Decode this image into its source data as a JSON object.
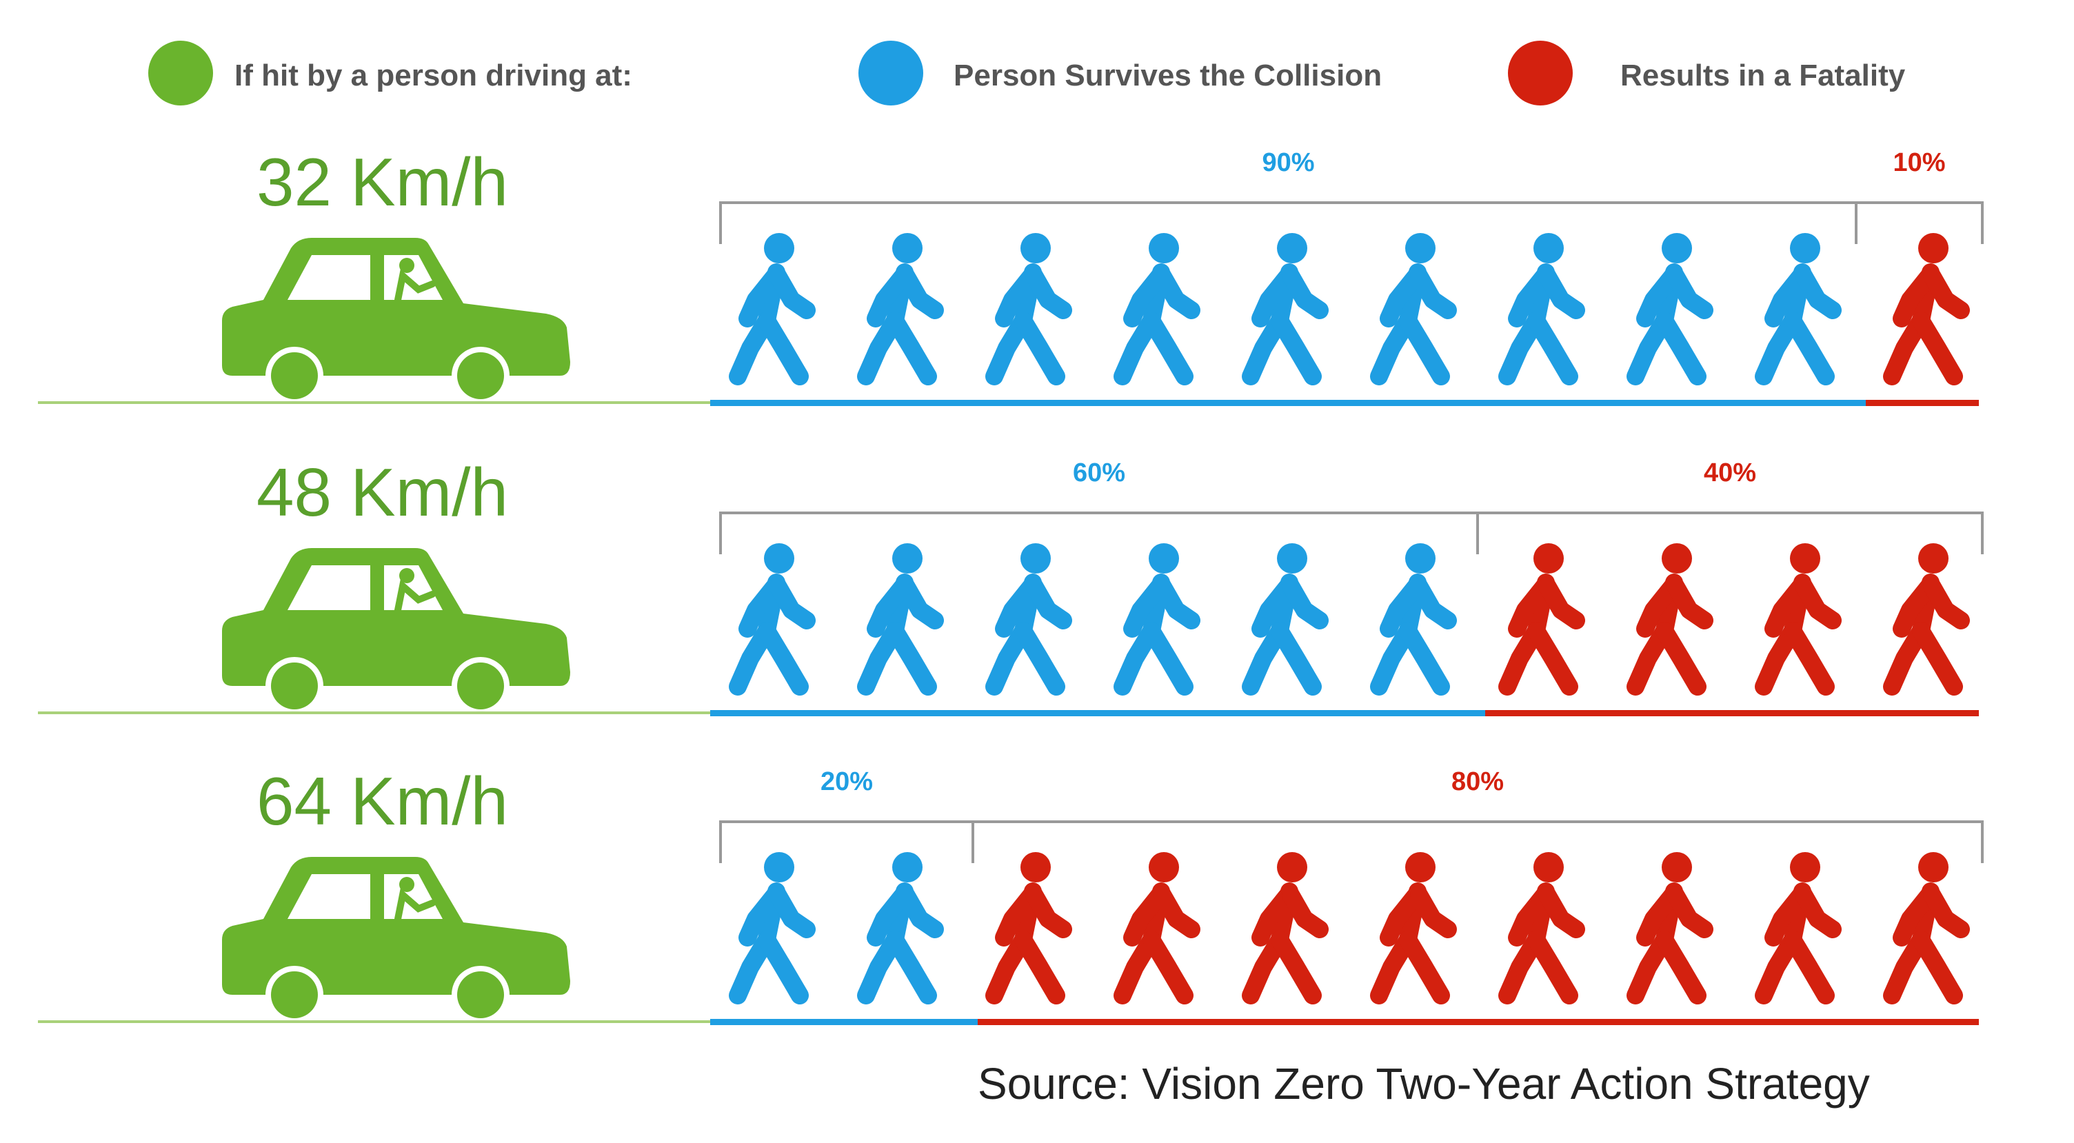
{
  "legend": {
    "speed_label": "If hit by a person driving at:",
    "survive_label": "Person Survives the Collision",
    "fatal_label": "Results in a Fatality"
  },
  "colors": {
    "green": "#6ab42d",
    "blue": "#1f9ee2",
    "red": "#d3210f",
    "bracket": "#999999"
  },
  "chart_data": {
    "type": "bar",
    "categories": [
      "32 Km/h",
      "48 Km/h",
      "64 Km/h"
    ],
    "series": [
      {
        "name": "Person Survives the Collision",
        "values": [
          90,
          60,
          20
        ],
        "labels": [
          "90%",
          "60%",
          "20%"
        ]
      },
      {
        "name": "Results in a Fatality",
        "values": [
          10,
          40,
          80
        ],
        "labels": [
          "10%",
          "40%",
          "80%"
        ]
      }
    ],
    "total_people": 10
  },
  "source": "Source: Vision Zero Two-Year Action Strategy"
}
